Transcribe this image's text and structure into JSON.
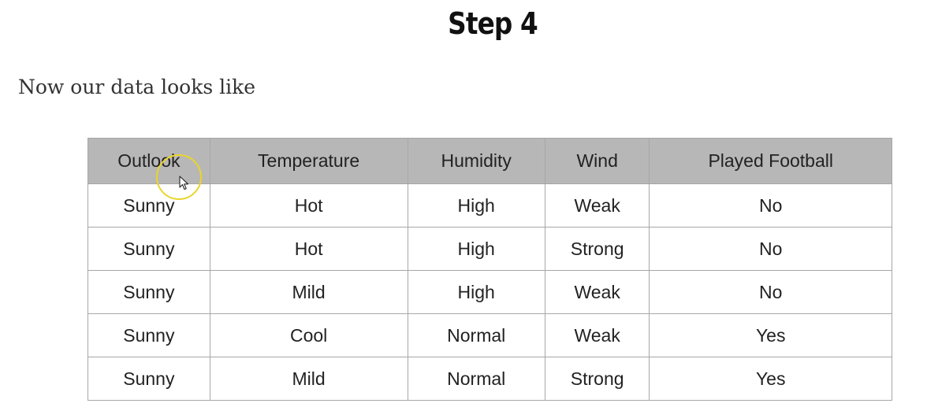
{
  "page": {
    "title": "Step 4",
    "intro": "Now our data looks like"
  },
  "table": {
    "headers": [
      "Outlook",
      "Temperature",
      "Humidity",
      "Wind",
      "Played Football"
    ],
    "rows": [
      [
        "Sunny",
        "Hot",
        "High",
        "Weak",
        "No"
      ],
      [
        "Sunny",
        "Hot",
        "High",
        "Strong",
        "No"
      ],
      [
        "Sunny",
        "Mild",
        "High",
        "Weak",
        "No"
      ],
      [
        "Sunny",
        "Cool",
        "Normal",
        "Weak",
        "Yes"
      ],
      [
        "Sunny",
        "Mild",
        "Normal",
        "Strong",
        "Yes"
      ]
    ]
  },
  "colors": {
    "header_bg": "#b7b7b7",
    "border": "#a7a7a7",
    "cursor_highlight": "#e9d52a"
  },
  "icons": {
    "cursor": "mouse-pointer-icon",
    "cursor_highlight": "cursor-highlight-ring-icon"
  }
}
